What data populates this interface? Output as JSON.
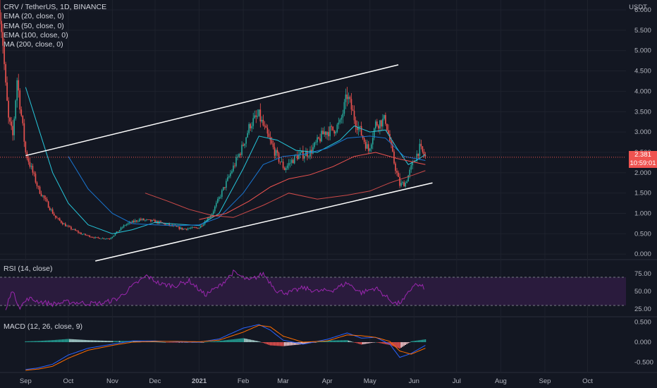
{
  "legend": {
    "symbol": "CRV / TetherUS, 1D, BINANCE",
    "ema20": "EMA (20, close, 0)",
    "ema50": "EMA (50, close, 0)",
    "ema100": "EMA (100, close, 0)",
    "ma200": "MA (200, close, 0)"
  },
  "currency": "USDT",
  "last_price": "2.381",
  "countdown": "10:59:01",
  "rsi_label": "RSI (14, close)",
  "macd_label": "MACD (12, 26, close, 9)",
  "colors": {
    "background": "#131722",
    "up": "#26a69a",
    "down": "#ef5350",
    "ema_fast": "#26c6da",
    "ema_slow": "#1976d2",
    "ma200": "#ef5350",
    "rsi": "#9c27b0",
    "rsi_band": "#2a1b3d",
    "macd": "#2962ff",
    "signal": "#ff6d00",
    "channel": "#ffffff",
    "grid": "#1e222d",
    "text": "#b2b5be"
  },
  "chart_data": [
    {
      "type": "line",
      "title": "CRV / TetherUS, 1D, BINANCE",
      "pane": "price",
      "x_axis": {
        "tick_labels": [
          "Sep",
          "Oct",
          "Nov",
          "Dec",
          "2021",
          "Feb",
          "Mar",
          "Apr",
          "May",
          "Jun",
          "Jul",
          "Aug",
          "Sep",
          "Oct"
        ],
        "range": [
          "2020-08-14",
          "2021-10-28"
        ]
      },
      "y_axis": {
        "unit": "USDT",
        "tick_labels": [
          "0.000",
          "0.500",
          "1.000",
          "1.500",
          "2.000",
          "2.500",
          "3.000",
          "3.500",
          "4.000",
          "4.500",
          "5.000",
          "5.500",
          "6.000"
        ],
        "ylim": [
          -0.1,
          6.0
        ]
      },
      "series": [
        {
          "type": "line",
          "x": [
            "2020-08-14",
            "2020-08-16",
            "2020-08-18",
            "2020-08-20",
            "2020-08-23",
            "2020-08-26",
            "2020-08-29",
            "2020-09-01",
            "2020-09-05",
            "2020-09-10",
            "2020-09-16",
            "2020-09-22",
            "2020-09-30",
            "2020-10-10",
            "2020-10-20",
            "2020-10-30",
            "2020-11-10",
            "2020-11-20",
            "2020-12-01",
            "2020-12-10",
            "2020-12-20",
            "2021-01-01",
            "2021-01-10",
            "2021-01-20",
            "2021-01-31",
            "2021-02-06",
            "2021-02-12",
            "2021-02-18",
            "2021-02-24",
            "2021-03-02",
            "2021-03-10",
            "2021-03-20",
            "2021-03-30",
            "2021-04-05",
            "2021-04-10",
            "2021-04-15",
            "2021-04-20",
            "2021-04-25",
            "2021-04-30",
            "2021-05-05",
            "2021-05-12",
            "2021-05-18",
            "2021-05-22",
            "2021-05-26",
            "2021-06-01",
            "2021-06-05",
            "2021-06-09"
          ],
          "y": [
            6.0,
            5.2,
            4.1,
            3.3,
            2.9,
            4.3,
            3.4,
            2.5,
            2.1,
            1.6,
            1.25,
            0.9,
            0.68,
            0.5,
            0.4,
            0.38,
            0.72,
            0.85,
            0.8,
            0.72,
            0.62,
            0.65,
            1.0,
            1.75,
            2.6,
            3.2,
            3.4,
            2.9,
            2.45,
            2.1,
            2.4,
            2.5,
            3.0,
            3.05,
            3.2,
            3.9,
            3.35,
            2.95,
            2.55,
            3.2,
            3.3,
            2.25,
            1.7,
            1.75,
            2.3,
            2.6,
            2.381
          ]
        },
        {
          "name": "EMA (20, close, 0)",
          "x": [
            "2020-09-01",
            "2020-09-10",
            "2020-09-20",
            "2020-10-01",
            "2020-10-15",
            "2020-11-01",
            "2020-11-15",
            "2020-12-01",
            "2020-12-15",
            "2021-01-01",
            "2021-01-15",
            "2021-02-01",
            "2021-02-12",
            "2021-02-25",
            "2021-03-10",
            "2021-03-25",
            "2021-04-10",
            "2021-04-20",
            "2021-05-01",
            "2021-05-12",
            "2021-05-20",
            "2021-05-28",
            "2021-06-05",
            "2021-06-09"
          ],
          "y": [
            4.1,
            3.1,
            2.0,
            1.25,
            0.72,
            0.5,
            0.6,
            0.78,
            0.74,
            0.7,
            1.0,
            2.1,
            2.9,
            2.8,
            2.55,
            2.5,
            2.8,
            3.15,
            3.0,
            3.05,
            2.6,
            2.2,
            2.35,
            2.45
          ]
        },
        {
          "name": "EMA (50, close, 0)",
          "x": [
            "2020-10-01",
            "2020-10-15",
            "2020-11-01",
            "2020-11-15",
            "2020-12-01",
            "2020-12-15",
            "2021-01-01",
            "2021-01-15",
            "2021-02-01",
            "2021-02-15",
            "2021-03-01",
            "2021-03-15",
            "2021-04-01",
            "2021-04-15",
            "2021-05-01",
            "2021-05-12",
            "2021-05-25",
            "2021-06-09"
          ],
          "y": [
            2.4,
            1.6,
            1.0,
            0.75,
            0.72,
            0.7,
            0.72,
            0.9,
            1.5,
            2.2,
            2.4,
            2.45,
            2.6,
            2.85,
            2.9,
            2.85,
            2.4,
            2.3
          ]
        },
        {
          "name": "EMA (100, close, 0)",
          "x": [
            "2021-01-01",
            "2021-01-20",
            "2021-02-05",
            "2021-02-20",
            "2021-03-05",
            "2021-03-20",
            "2021-04-05",
            "2021-04-20",
            "2021-05-05",
            "2021-05-20",
            "2021-06-09"
          ],
          "y": [
            0.85,
            1.0,
            1.3,
            1.65,
            1.85,
            1.95,
            2.15,
            2.4,
            2.5,
            2.35,
            2.2
          ]
        },
        {
          "name": "MA (200, close, 0)",
          "x": [
            "2020-11-24",
            "2020-12-10",
            "2020-12-25",
            "2021-01-10",
            "2021-01-25",
            "2021-02-15",
            "2021-03-05",
            "2021-03-25",
            "2021-04-15",
            "2021-05-01",
            "2021-05-15",
            "2021-06-01",
            "2021-06-09"
          ],
          "y": [
            1.5,
            1.3,
            1.1,
            0.95,
            0.9,
            1.2,
            1.5,
            1.35,
            1.45,
            1.55,
            1.75,
            1.95,
            2.05
          ]
        }
      ],
      "annotations": [
        {
          "type": "trendline",
          "from": [
            "2020-09-01",
            2.42
          ],
          "to": [
            "2021-05-21",
            4.65
          ]
        },
        {
          "type": "trendline",
          "from": [
            "2020-10-20",
            -0.17
          ],
          "to": [
            "2021-06-14",
            1.75
          ]
        },
        {
          "type": "hline",
          "y": 2.381,
          "style": "dotted"
        }
      ]
    },
    {
      "type": "line",
      "title": "RSI (14, close)",
      "pane": "rsi",
      "y_axis": {
        "tick_labels": [
          "25.00",
          "50.00",
          "75.00"
        ],
        "ylim": [
          17,
          93
        ]
      },
      "band": [
        30,
        70
      ],
      "series": [
        {
          "x": [
            "2020-08-18",
            "2020-08-22",
            "2020-08-28",
            "2020-09-03",
            "2020-09-10",
            "2020-09-20",
            "2020-10-01",
            "2020-10-15",
            "2020-10-25",
            "2020-11-05",
            "2020-11-15",
            "2020-11-25",
            "2020-12-05",
            "2020-12-15",
            "2020-12-25",
            "2021-01-05",
            "2021-01-15",
            "2021-01-25",
            "2021-02-05",
            "2021-02-15",
            "2021-02-25",
            "2021-03-05",
            "2021-03-15",
            "2021-03-25",
            "2021-04-05",
            "2021-04-15",
            "2021-04-25",
            "2021-05-05",
            "2021-05-15",
            "2021-05-20",
            "2021-05-25",
            "2021-06-01",
            "2021-06-09"
          ],
          "y": [
            22,
            52,
            28,
            40,
            36,
            32,
            35,
            33,
            33,
            40,
            57,
            72,
            60,
            58,
            65,
            45,
            57,
            77,
            65,
            75,
            50,
            48,
            55,
            50,
            52,
            62,
            48,
            55,
            38,
            32,
            38,
            60,
            55
          ]
        }
      ]
    },
    {
      "type": "bar",
      "title": "MACD (12, 26, close, 9)",
      "pane": "macd",
      "y_axis": {
        "tick_labels": [
          "-0.500",
          "0.000",
          "0.500"
        ],
        "ylim": [
          -0.72,
          0.58
        ]
      },
      "series": [
        {
          "name": "MACD",
          "x": [
            "2020-09-01",
            "2020-09-10",
            "2020-09-20",
            "2020-10-01",
            "2020-10-15",
            "2020-11-01",
            "2020-11-15",
            "2020-12-01",
            "2020-12-15",
            "2021-01-01",
            "2021-01-15",
            "2021-02-01",
            "2021-02-12",
            "2021-02-20",
            "2021-03-01",
            "2021-03-15",
            "2021-04-01",
            "2021-04-15",
            "2021-04-25",
            "2021-05-05",
            "2021-05-15",
            "2021-05-22",
            "2021-05-30",
            "2021-06-09"
          ],
          "y": [
            -0.68,
            -0.64,
            -0.55,
            -0.32,
            -0.15,
            -0.05,
            0.03,
            0.03,
            0.01,
            0.0,
            0.08,
            0.35,
            0.44,
            0.3,
            0.05,
            -0.05,
            0.07,
            0.23,
            0.1,
            0.12,
            -0.05,
            -0.38,
            -0.28,
            -0.08
          ]
        },
        {
          "name": "Signal",
          "x": [
            "2020-09-01",
            "2020-09-10",
            "2020-09-20",
            "2020-10-01",
            "2020-10-15",
            "2020-11-01",
            "2020-11-15",
            "2020-12-01",
            "2020-12-15",
            "2021-01-01",
            "2021-01-15",
            "2021-02-01",
            "2021-02-12",
            "2021-02-20",
            "2021-03-01",
            "2021-03-15",
            "2021-04-01",
            "2021-04-15",
            "2021-04-25",
            "2021-05-05",
            "2021-05-15",
            "2021-05-22",
            "2021-05-30",
            "2021-06-09"
          ],
          "y": [
            -0.7,
            -0.67,
            -0.6,
            -0.4,
            -0.2,
            -0.08,
            0.0,
            0.02,
            0.02,
            0.01,
            0.05,
            0.25,
            0.42,
            0.38,
            0.15,
            0.0,
            0.03,
            0.18,
            0.16,
            0.12,
            0.02,
            -0.22,
            -0.3,
            -0.15
          ]
        }
      ]
    }
  ]
}
